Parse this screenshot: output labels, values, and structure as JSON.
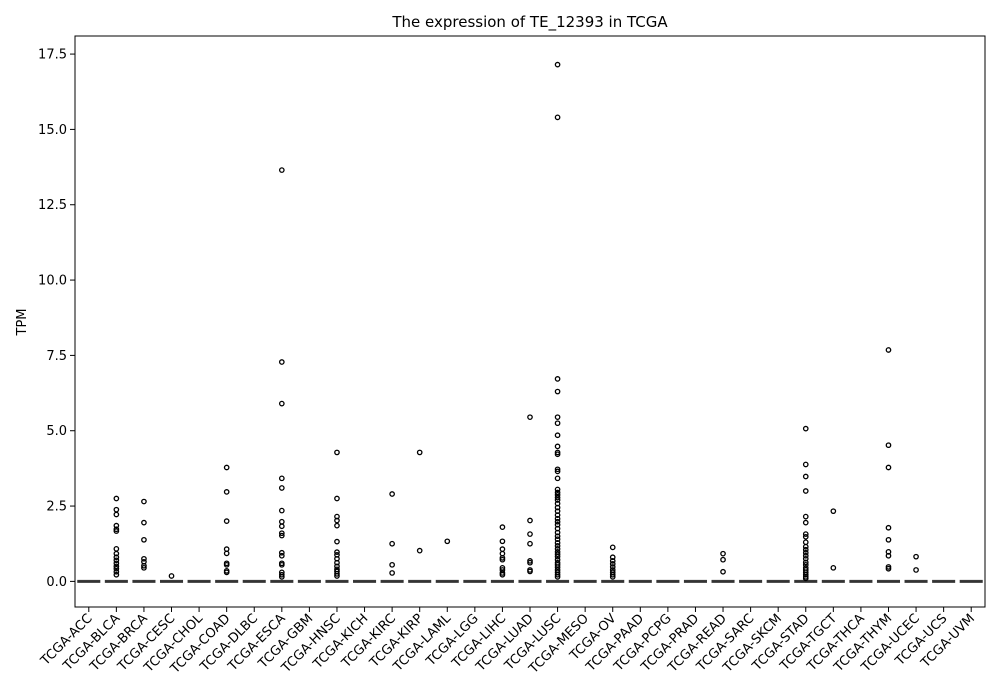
{
  "chart_data": {
    "type": "box",
    "title": "The expression of TE_12393 in TCGA",
    "xlabel": "",
    "ylabel": "TPM",
    "ylim": [
      -0.85,
      18.1
    ],
    "yticks": [
      0.0,
      2.5,
      5.0,
      7.5,
      10.0,
      12.5,
      15.0,
      17.5
    ],
    "ytick_labels": [
      "0.0",
      "2.5",
      "5.0",
      "7.5",
      "10.0",
      "12.5",
      "15.0",
      "17.5"
    ],
    "grid": false,
    "categories": [
      "TCGA-ACC",
      "TCGA-BLCA",
      "TCGA-BRCA",
      "TCGA-CESC",
      "TCGA-CHOL",
      "TCGA-COAD",
      "TCGA-DLBC",
      "TCGA-ESCA",
      "TCGA-GBM",
      "TCGA-HNSC",
      "TCGA-KICH",
      "TCGA-KIRC",
      "TCGA-KIRP",
      "TCGA-LAML",
      "TCGA-LGG",
      "TCGA-LIHC",
      "TCGA-LUAD",
      "TCGA-LUSC",
      "TCGA-MESO",
      "TCGA-OV",
      "TCGA-PAAD",
      "TCGA-PCPG",
      "TCGA-PRAD",
      "TCGA-READ",
      "TCGA-SARC",
      "TCGA-SKCM",
      "TCGA-STAD",
      "TCGA-TGCT",
      "TCGA-THCA",
      "TCGA-THYM",
      "TCGA-UCEC",
      "TCGA-UCS",
      "TCGA-UVM"
    ],
    "box_stats": {
      "q1": 0.0,
      "median": 0.0,
      "q3": 0.0,
      "whisker_low": 0.0,
      "whisker_high": 0.0
    },
    "outliers": {
      "TCGA-ACC": [],
      "TCGA-BLCA": [
        2.75,
        2.38,
        2.22,
        1.85,
        1.73,
        1.67,
        1.08,
        0.92,
        0.8,
        0.7,
        0.6,
        0.5,
        0.42,
        0.32,
        0.22
      ],
      "TCGA-BRCA": [
        2.65,
        1.95,
        1.38,
        0.75,
        0.65,
        0.52,
        0.45
      ],
      "TCGA-CESC": [
        0.18
      ],
      "TCGA-CHOL": [],
      "TCGA-COAD": [
        3.78,
        2.97,
        2.0,
        1.07,
        0.93,
        0.6,
        0.55,
        0.35,
        0.3
      ],
      "TCGA-DLBC": [],
      "TCGA-ESCA": [
        13.65,
        7.28,
        5.9,
        3.42,
        3.1,
        2.35,
        1.98,
        1.83,
        1.6,
        1.52,
        0.95,
        0.85,
        0.6,
        0.55,
        0.3,
        0.22,
        0.15
      ],
      "TCGA-GBM": [],
      "TCGA-HNSC": [
        4.28,
        2.75,
        2.15,
        2.02,
        1.85,
        1.32,
        0.97,
        0.88,
        0.75,
        0.62,
        0.5,
        0.4,
        0.33,
        0.25,
        0.18
      ],
      "TCGA-KICH": [],
      "TCGA-KIRC": [
        2.9,
        1.25,
        0.55,
        0.28
      ],
      "TCGA-KIRP": [
        4.28,
        1.02
      ],
      "TCGA-LAML": [
        1.33
      ],
      "TCGA-LGG": [],
      "TCGA-LIHC": [
        1.8,
        1.33,
        1.07,
        0.92,
        0.78,
        0.72,
        0.45,
        0.38,
        0.28,
        0.22
      ],
      "TCGA-LUAD": [
        5.45,
        2.02,
        1.57,
        1.25,
        0.68,
        0.62,
        0.38,
        0.33
      ],
      "TCGA-LUSC": [
        17.15,
        15.4,
        6.72,
        6.3,
        5.45,
        5.25,
        4.85,
        4.48,
        4.28,
        4.22,
        3.72,
        3.65,
        3.42,
        3.05,
        2.95,
        2.87,
        2.78,
        2.7,
        2.58,
        2.45,
        2.33,
        2.2,
        2.08,
        1.98,
        1.88,
        1.75,
        1.62,
        1.5,
        1.4,
        1.28,
        1.18,
        1.08,
        0.98,
        0.9,
        0.82,
        0.72,
        0.62,
        0.55,
        0.47,
        0.38,
        0.3,
        0.22,
        0.15
      ],
      "TCGA-MESO": [],
      "TCGA-OV": [
        1.13,
        0.8,
        0.68,
        0.58,
        0.48,
        0.38,
        0.3,
        0.22,
        0.15
      ],
      "TCGA-PAAD": [],
      "TCGA-PCPG": [],
      "TCGA-PRAD": [],
      "TCGA-READ": [
        0.92,
        0.72,
        0.32
      ],
      "TCGA-SARC": [],
      "TCGA-SKCM": [],
      "TCGA-STAD": [
        5.07,
        3.88,
        3.48,
        3.0,
        2.15,
        1.95,
        1.57,
        1.48,
        1.3,
        1.15,
        1.05,
        0.95,
        0.85,
        0.75,
        0.63,
        0.55,
        0.45,
        0.38,
        0.3,
        0.22,
        0.15,
        0.1
      ],
      "TCGA-TGCT": [
        2.33,
        0.45
      ],
      "TCGA-THCA": [],
      "TCGA-THYM": [
        7.68,
        4.52,
        3.78,
        1.78,
        1.38,
        0.98,
        0.85,
        0.48,
        0.42
      ],
      "TCGA-UCEC": [
        0.82,
        0.38
      ],
      "TCGA-UCS": [],
      "TCGA-UVM": []
    }
  }
}
